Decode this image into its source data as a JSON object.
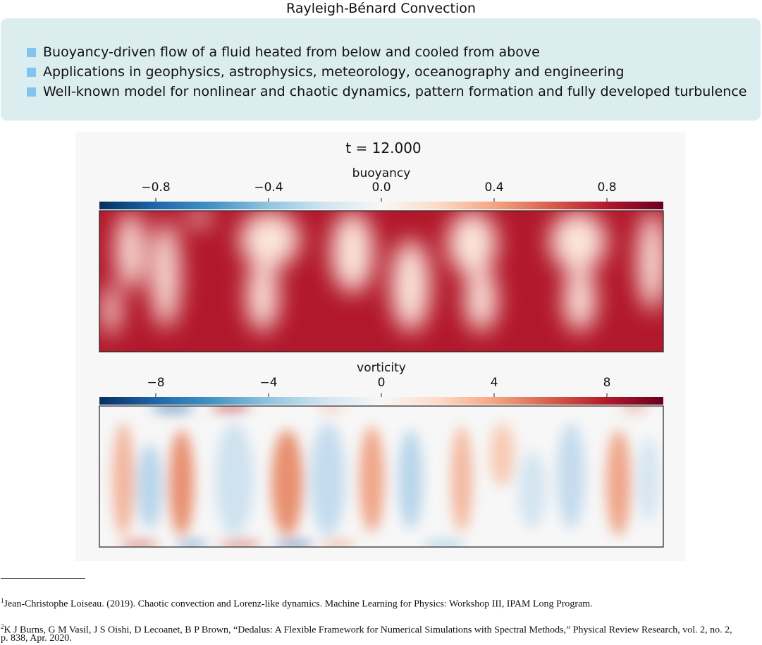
{
  "page": {
    "title": "Rayleigh-Bénard Convection"
  },
  "bullets": [
    "Buoyancy-driven flow of a fluid heated from below and cooled from above",
    "Applications in geophysics, astrophysics, meteorology, oceanography and engineering",
    "Well-known model for nonlinear and chaotic dynamics, pattern formation and fully developed turbulence"
  ],
  "figure": {
    "time_label": "t = 12.000",
    "colors": {
      "low": "#053061",
      "mid": "#f7f7f7",
      "high": "#67001f",
      "fluid_hot": "#b2182b",
      "fluid_light": "#fbe5dc"
    },
    "buoyancy": {
      "label": "buoyancy",
      "ticks": [
        "−0.8",
        "−0.4",
        "0.0",
        "0.4",
        "0.8"
      ],
      "tick_values": [
        -0.8,
        -0.4,
        0.0,
        0.4,
        0.8
      ],
      "range": [
        -1.0,
        1.0
      ]
    },
    "vorticity": {
      "label": "vorticity",
      "ticks": [
        "−8",
        "−4",
        "0",
        "4",
        "8"
      ],
      "tick_values": [
        -8,
        -4,
        0,
        4,
        8
      ],
      "range": [
        -10,
        10
      ]
    }
  },
  "footnotes": [
    {
      "mark": "1",
      "text": "Jean-Christophe Loiseau. (2019). Chaotic convection and Lorenz-like dynamics. Machine Learning for Physics: Workshop III, IPAM Long Program."
    },
    {
      "mark": "2",
      "text": "K J Burns, G M Vasil, J S Oishi, D Lecoanet, B P Brown, “Dedalus: A Flexible Framework for Numerical Simulations with Spectral Methods,” Physical Review Research, vol. 2, no. 2,"
    },
    {
      "mark": "",
      "text": "p. 838, Apr. 2020."
    }
  ]
}
